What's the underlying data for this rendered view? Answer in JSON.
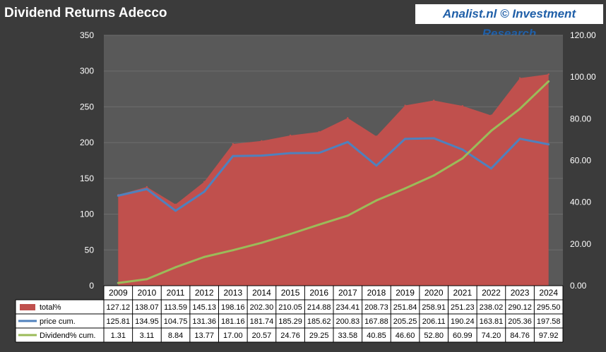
{
  "title": "Dividend Returns Adecco",
  "source": "Analist.nl © Investment Research",
  "chart_data": {
    "type": "area",
    "categories": [
      "2009",
      "2010",
      "2011",
      "2012",
      "2013",
      "2014",
      "2015",
      "2016",
      "2017",
      "2018",
      "2019",
      "2020",
      "2021",
      "2022",
      "2023",
      "2024"
    ],
    "y_left": {
      "ticks": [
        "350",
        "300",
        "250",
        "200",
        "150",
        "100",
        "50",
        "0"
      ],
      "range": [
        0,
        350
      ]
    },
    "y_right": {
      "ticks": [
        "120.00",
        "100.00",
        "80.00",
        "60.00",
        "40.00",
        "20.00",
        "0.00"
      ],
      "range": [
        0,
        120
      ]
    },
    "grid": true,
    "legend": "table-below",
    "series": [
      {
        "name": "total%",
        "kind": "area",
        "axis": "left",
        "color": "#c0504d",
        "values": [
          127.12,
          138.07,
          113.59,
          145.13,
          198.16,
          202.3,
          210.05,
          214.88,
          234.41,
          208.73,
          251.84,
          258.91,
          251.23,
          238.02,
          290.12,
          295.5
        ],
        "labels": [
          "127.12",
          "138.07",
          "113.59",
          "145.13",
          "198.16",
          "202.30",
          "210.05",
          "214.88",
          "234.41",
          "208.73",
          "251.84",
          "258.91",
          "251.23",
          "238.02",
          "290.12",
          "295.50"
        ]
      },
      {
        "name": "price cum.",
        "kind": "line",
        "axis": "left",
        "color": "#4f81bd",
        "values": [
          125.81,
          134.95,
          104.75,
          131.36,
          181.16,
          181.74,
          185.29,
          185.62,
          200.83,
          167.88,
          205.25,
          206.11,
          190.24,
          163.81,
          205.36,
          197.58
        ],
        "labels": [
          "125.81",
          "134.95",
          "104.75",
          "131.36",
          "181.16",
          "181.74",
          "185.29",
          "185.62",
          "200.83",
          "167.88",
          "205.25",
          "206.11",
          "190.24",
          "163.81",
          "205.36",
          "197.58"
        ]
      },
      {
        "name": "Dividend% cum.",
        "kind": "line",
        "axis": "right",
        "color": "#9bbb59",
        "values": [
          1.31,
          3.11,
          8.84,
          13.77,
          17.0,
          20.57,
          24.76,
          29.25,
          33.58,
          40.85,
          46.6,
          52.8,
          60.99,
          74.2,
          84.76,
          97.92
        ],
        "labels": [
          "1.31",
          "3.11",
          "8.84",
          "13.77",
          "17.00",
          "20.57",
          "24.76",
          "29.25",
          "33.58",
          "40.85",
          "46.60",
          "52.80",
          "60.99",
          "74.20",
          "84.76",
          "97.92"
        ]
      }
    ]
  }
}
